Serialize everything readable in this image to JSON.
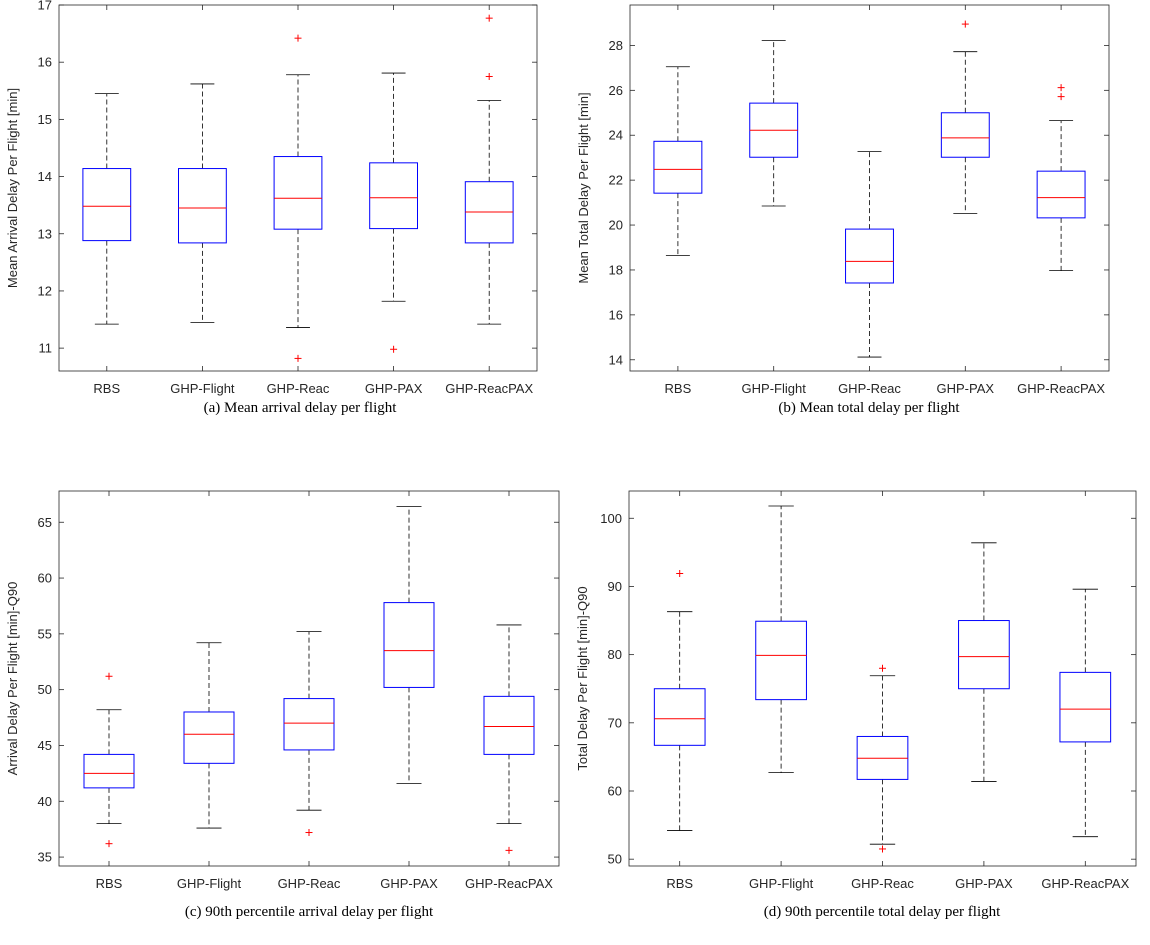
{
  "chart_data": [
    {
      "type": "box",
      "caption": "(a) Mean arrival delay per flight",
      "ylabel": "Mean Arrival Delay Per Flight [min]",
      "ylim": [
        10.6,
        17.0
      ],
      "yticks": [
        11,
        12,
        13,
        14,
        15,
        16,
        17
      ],
      "categories": [
        "RBS",
        "GHP-Flight",
        "GHP-Reac",
        "GHP-PAX",
        "GHP-ReacPAX"
      ],
      "boxes": [
        {
          "whisker_low": 11.42,
          "q1": 12.88,
          "median": 13.48,
          "q3": 14.14,
          "whisker_high": 15.45,
          "outliers": []
        },
        {
          "whisker_low": 11.45,
          "q1": 12.84,
          "median": 13.45,
          "q3": 14.14,
          "whisker_high": 15.62,
          "outliers": []
        },
        {
          "whisker_low": 11.36,
          "q1": 13.08,
          "median": 13.62,
          "q3": 14.35,
          "whisker_high": 15.78,
          "outliers": [
            16.42,
            10.82
          ]
        },
        {
          "whisker_low": 11.82,
          "q1": 13.09,
          "median": 13.63,
          "q3": 14.24,
          "whisker_high": 15.81,
          "outliers": [
            10.98
          ]
        },
        {
          "whisker_low": 11.42,
          "q1": 12.84,
          "median": 13.38,
          "q3": 13.91,
          "whisker_high": 15.33,
          "outliers": [
            16.77,
            15.75
          ]
        }
      ]
    },
    {
      "type": "box",
      "caption": "(b) Mean total delay per flight",
      "ylabel": "Mean Total Delay Per Flight [min]",
      "ylim": [
        13.5,
        29.8
      ],
      "yticks": [
        14,
        16,
        18,
        20,
        22,
        24,
        26,
        28
      ],
      "categories": [
        "RBS",
        "GHP-Flight",
        "GHP-Reac",
        "GHP-PAX",
        "GHP-ReacPAX"
      ],
      "boxes": [
        {
          "whisker_low": 18.65,
          "q1": 21.42,
          "median": 22.48,
          "q3": 23.73,
          "whisker_high": 27.05,
          "outliers": []
        },
        {
          "whisker_low": 20.85,
          "q1": 23.02,
          "median": 24.22,
          "q3": 25.43,
          "whisker_high": 28.22,
          "outliers": []
        },
        {
          "whisker_low": 14.12,
          "q1": 17.42,
          "median": 18.38,
          "q3": 19.82,
          "whisker_high": 23.28,
          "outliers": []
        },
        {
          "whisker_low": 20.52,
          "q1": 23.02,
          "median": 23.88,
          "q3": 25.0,
          "whisker_high": 27.72,
          "outliers": [
            28.95
          ]
        },
        {
          "whisker_low": 17.97,
          "q1": 20.32,
          "median": 21.22,
          "q3": 22.4,
          "whisker_high": 24.65,
          "outliers": [
            26.12,
            25.72
          ]
        }
      ]
    },
    {
      "type": "box",
      "caption": "(c) 90th percentile arrival delay per flight",
      "ylabel": "Arrival Delay Per Flight [min]-Q90",
      "ylim": [
        34.2,
        67.8
      ],
      "yticks": [
        35,
        40,
        45,
        50,
        55,
        60,
        65
      ],
      "categories": [
        "RBS",
        "GHP-Flight",
        "GHP-Reac",
        "GHP-PAX",
        "GHP-ReacPAX"
      ],
      "boxes": [
        {
          "whisker_low": 38.0,
          "q1": 41.2,
          "median": 42.5,
          "q3": 44.2,
          "whisker_high": 48.2,
          "outliers": [
            51.2,
            36.2
          ]
        },
        {
          "whisker_low": 37.6,
          "q1": 43.4,
          "median": 46.0,
          "q3": 48.0,
          "whisker_high": 54.2,
          "outliers": []
        },
        {
          "whisker_low": 39.2,
          "q1": 44.6,
          "median": 47.0,
          "q3": 49.2,
          "whisker_high": 55.2,
          "outliers": [
            37.2
          ]
        },
        {
          "whisker_low": 41.6,
          "q1": 50.2,
          "median": 53.5,
          "q3": 57.8,
          "whisker_high": 66.4,
          "outliers": []
        },
        {
          "whisker_low": 38.0,
          "q1": 44.2,
          "median": 46.7,
          "q3": 49.4,
          "whisker_high": 55.8,
          "outliers": [
            35.6
          ]
        }
      ]
    },
    {
      "type": "box",
      "caption": "(d) 90th percentile total delay per flight",
      "ylabel": "Total Delay Per Flight [min]-Q90",
      "ylim": [
        49.0,
        104.0
      ],
      "yticks": [
        50,
        60,
        70,
        80,
        90,
        100
      ],
      "categories": [
        "RBS",
        "GHP-Flight",
        "GHP-Reac",
        "GHP-PAX",
        "GHP-ReacPAX"
      ],
      "boxes": [
        {
          "whisker_low": 54.2,
          "q1": 66.7,
          "median": 70.6,
          "q3": 75.0,
          "whisker_high": 86.3,
          "outliers": [
            91.9
          ]
        },
        {
          "whisker_low": 62.7,
          "q1": 73.4,
          "median": 79.9,
          "q3": 84.9,
          "whisker_high": 101.8,
          "outliers": []
        },
        {
          "whisker_low": 52.2,
          "q1": 61.7,
          "median": 64.8,
          "q3": 68.0,
          "whisker_high": 76.9,
          "outliers": [
            78.0,
            51.5
          ]
        },
        {
          "whisker_low": 61.4,
          "q1": 75.0,
          "median": 79.7,
          "q3": 85.0,
          "whisker_high": 96.4,
          "outliers": []
        },
        {
          "whisker_low": 53.3,
          "q1": 67.2,
          "median": 72.0,
          "q3": 77.4,
          "whisker_high": 89.6,
          "outliers": []
        }
      ]
    }
  ],
  "colors": {
    "box": "#0000ff",
    "median": "#ff0000",
    "whisker": "#000000",
    "outlier": "#ff0000",
    "axis": "#262626"
  }
}
